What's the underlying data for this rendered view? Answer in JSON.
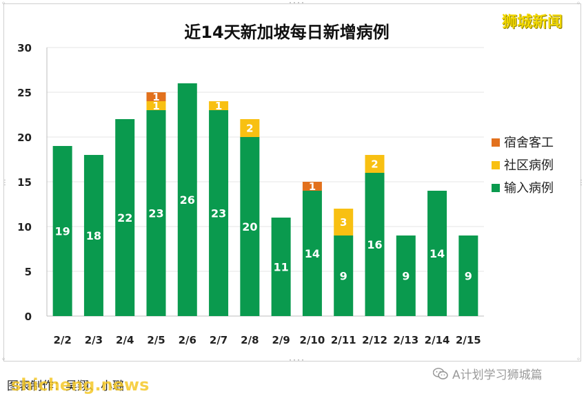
{
  "watermark_brand": "狮城新闻",
  "credit": "图表制作：吴翔、小璐",
  "site_watermark": "shicheng.news",
  "source_account": "A计划学习狮城篇",
  "chart_data": {
    "type": "bar",
    "stacked": true,
    "title": "近14天新加坡每日新增病例",
    "categories": [
      "2/2",
      "2/3",
      "2/4",
      "2/5",
      "2/6",
      "2/7",
      "2/8",
      "2/9",
      "2/10",
      "2/11",
      "2/12",
      "2/13",
      "2/14",
      "2/15"
    ],
    "series": [
      {
        "name": "输入病例",
        "color": "#0a9a4e",
        "values": [
          19,
          18,
          22,
          23,
          26,
          23,
          20,
          11,
          14,
          9,
          16,
          9,
          14,
          9
        ]
      },
      {
        "name": "社区病例",
        "color": "#f8c012",
        "values": [
          0,
          0,
          0,
          1,
          0,
          1,
          2,
          0,
          0,
          3,
          2,
          0,
          0,
          0
        ]
      },
      {
        "name": "宿舍客工",
        "color": "#e2711d",
        "values": [
          0,
          0,
          0,
          1,
          0,
          0,
          0,
          0,
          1,
          0,
          0,
          0,
          0,
          0
        ]
      }
    ],
    "ylim": [
      0,
      30
    ],
    "yticks": [
      0,
      5,
      10,
      15,
      20,
      25,
      30
    ],
    "grid": true,
    "legend_position": "right",
    "legend_order": [
      "宿舍客工",
      "社区病例",
      "输入病例"
    ]
  }
}
